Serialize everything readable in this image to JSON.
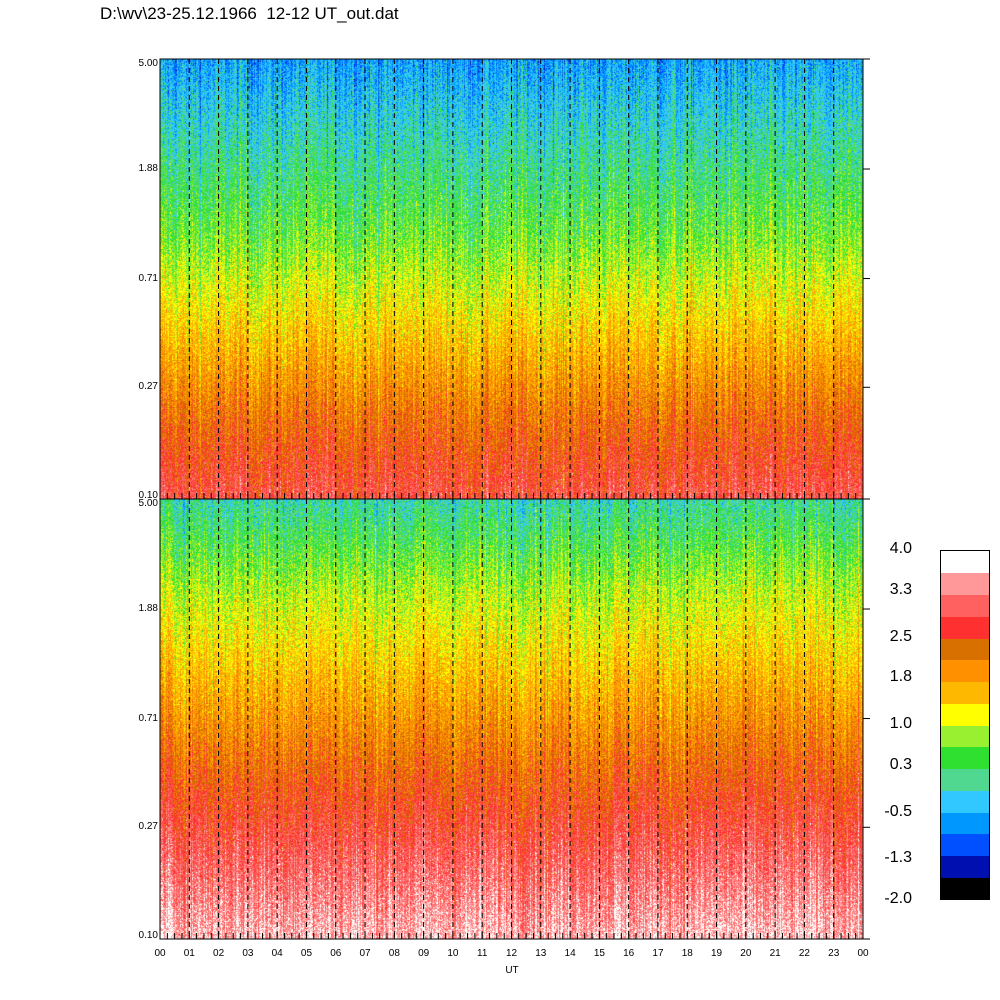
{
  "title": "D:\\wv\\23-25.12.1966  12-12 UT_out.dat",
  "chart_data": [
    {
      "type": "heatmap",
      "panel": "top",
      "ytick_labels": [
        "5.00",
        "1.88",
        "0.71",
        "0.27",
        "0.10"
      ],
      "yticks": [
        5.0,
        1.88,
        0.71,
        0.27,
        0.1
      ],
      "ylim": [
        0.1,
        5.0
      ],
      "yscale": "log",
      "xlim": [
        0,
        24
      ],
      "profile": [
        2.9,
        2.2,
        1.4,
        0.6,
        0.0,
        -0.6
      ]
    },
    {
      "type": "heatmap",
      "panel": "bottom",
      "ytick_labels": [
        "5.00",
        "1.88",
        "0.71",
        "0.27",
        "0.10"
      ],
      "yticks": [
        5.0,
        1.88,
        0.71,
        0.27,
        0.1
      ],
      "ylim": [
        0.1,
        5.0
      ],
      "yscale": "log",
      "xlim": [
        0,
        24
      ],
      "profile": [
        3.6,
        3.0,
        2.3,
        1.6,
        0.9,
        0.0
      ]
    }
  ],
  "xaxis": {
    "label": "UT",
    "tick_labels": [
      "00",
      "01",
      "02",
      "03",
      "04",
      "05",
      "06",
      "07",
      "08",
      "09",
      "10",
      "11",
      "12",
      "13",
      "14",
      "15",
      "16",
      "17",
      "18",
      "19",
      "20",
      "21",
      "22",
      "23",
      "00"
    ]
  },
  "colorbar": {
    "labels": [
      "4.0",
      "3.3",
      "2.5",
      "1.8",
      "1.0",
      "0.3",
      "-0.5",
      "-1.3",
      "-2.0"
    ],
    "label_values": [
      4.0,
      3.3,
      2.5,
      1.8,
      1.0,
      0.3,
      -0.5,
      -1.3,
      -2.0
    ],
    "range": [
      -2.0,
      4.0
    ],
    "colors": [
      "#000000",
      "#0010b0",
      "#0050ff",
      "#0098ff",
      "#30c8ff",
      "#50d890",
      "#30e030",
      "#98f030",
      "#ffff00",
      "#ffb800",
      "#ff9000",
      "#d87000",
      "#ff3030",
      "#ff6060",
      "#ff9898",
      "#ffffff"
    ]
  }
}
